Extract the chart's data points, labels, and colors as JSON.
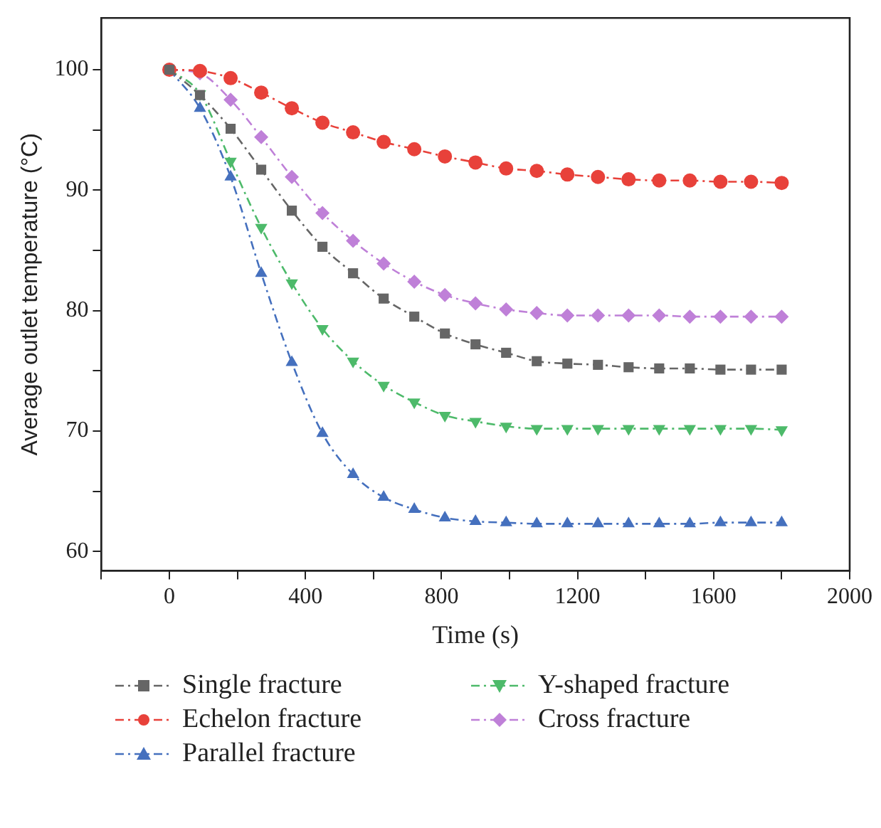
{
  "chart_data": {
    "type": "line",
    "xlabel": "Time (s)",
    "ylabel": "Average outlet temperature (°C)",
    "x": [
      0,
      90,
      180,
      270,
      360,
      450,
      540,
      630,
      720,
      810,
      900,
      990,
      1080,
      1170,
      1260,
      1350,
      1440,
      1530,
      1620,
      1710,
      1800
    ],
    "series": [
      {
        "name": "Single fracture",
        "color": "#666666",
        "marker": "square",
        "values": [
          100,
          97.9,
          95.1,
          91.7,
          88.3,
          85.3,
          83.1,
          81.0,
          79.5,
          78.1,
          77.2,
          76.5,
          75.8,
          75.6,
          75.5,
          75.3,
          75.2,
          75.2,
          75.1,
          75.1,
          75.1
        ]
      },
      {
        "name": "Echelon fracture",
        "color": "#e8413a",
        "marker": "circle",
        "values": [
          100,
          99.9,
          99.3,
          98.1,
          96.8,
          95.6,
          94.8,
          94.0,
          93.4,
          92.8,
          92.3,
          91.8,
          91.6,
          91.3,
          91.1,
          90.9,
          90.8,
          90.8,
          90.7,
          90.7,
          90.6
        ]
      },
      {
        "name": "Parallel fracture",
        "color": "#4570be",
        "marker": "triangle",
        "values": [
          100,
          96.8,
          91.1,
          83.1,
          75.7,
          69.8,
          66.4,
          64.5,
          63.5,
          62.8,
          62.5,
          62.4,
          62.3,
          62.3,
          62.3,
          62.3,
          62.3,
          62.3,
          62.4,
          62.4,
          62.4
        ]
      },
      {
        "name": "Y-shaped fracture",
        "color": "#4dba6a",
        "marker": "triangle-down",
        "values": [
          100,
          98.0,
          92.4,
          86.9,
          82.3,
          78.5,
          75.8,
          73.8,
          72.4,
          71.3,
          70.8,
          70.4,
          70.2,
          70.2,
          70.2,
          70.2,
          70.2,
          70.2,
          70.2,
          70.2,
          70.1
        ]
      },
      {
        "name": "Cross fracture",
        "color": "#bf80d8",
        "marker": "diamond",
        "values": [
          100,
          99.7,
          97.5,
          94.4,
          91.1,
          88.1,
          85.8,
          83.9,
          82.4,
          81.3,
          80.6,
          80.1,
          79.8,
          79.6,
          79.6,
          79.6,
          79.6,
          79.5,
          79.5,
          79.5,
          79.5
        ]
      }
    ],
    "xlim": [
      -200,
      2000
    ],
    "xticks": [
      {
        "value": -200,
        "label": null
      },
      0,
      {
        "value": 200,
        "label": null
      },
      400,
      {
        "value": 600,
        "label": null
      },
      800,
      {
        "value": 1000,
        "label": null
      },
      1200,
      {
        "value": 1400,
        "label": null
      },
      1600,
      {
        "value": 1800,
        "label": null
      },
      2000
    ],
    "ylim": [
      58.4,
      104.3
    ],
    "yticks": [
      60,
      {
        "value": 65,
        "label": null
      },
      70,
      {
        "value": 75,
        "label": null
      },
      80,
      {
        "value": 85,
        "label": null
      },
      90,
      {
        "value": 95,
        "label": null
      },
      100
    ],
    "grid": false,
    "legend": "bottom",
    "line_style": "dashed"
  }
}
